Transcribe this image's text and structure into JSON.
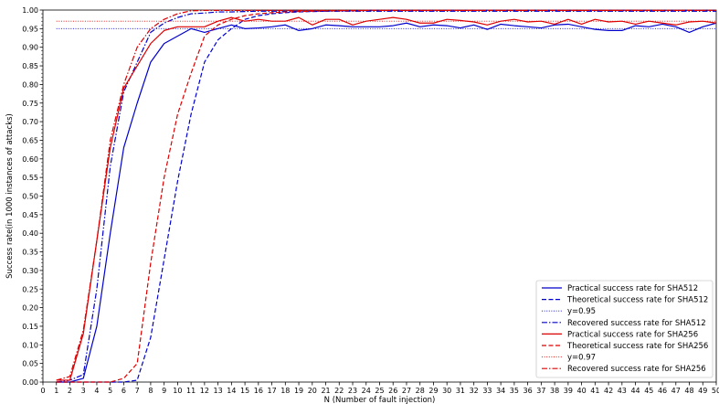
{
  "chart_data": {
    "type": "line",
    "xlabel": "N (Number of fault injection)",
    "ylabel": "Success rate(in 1000 instances of attacks)",
    "xlim": [
      0,
      50
    ],
    "ylim": [
      0,
      1.0
    ],
    "x_ticks": [
      0,
      1,
      2,
      3,
      4,
      5,
      6,
      7,
      8,
      9,
      10,
      11,
      12,
      13,
      14,
      15,
      16,
      17,
      18,
      19,
      20,
      21,
      22,
      23,
      24,
      25,
      26,
      27,
      28,
      29,
      30,
      31,
      32,
      33,
      34,
      35,
      36,
      37,
      38,
      39,
      40,
      41,
      42,
      43,
      44,
      45,
      46,
      47,
      48,
      49,
      50
    ],
    "y_ticks": [
      0.0,
      0.05,
      0.1,
      0.15,
      0.2,
      0.25,
      0.3,
      0.35,
      0.4,
      0.45,
      0.5,
      0.55,
      0.6,
      0.65,
      0.7,
      0.75,
      0.8,
      0.85,
      0.9,
      0.95,
      1.0
    ],
    "grid": false,
    "legend_position": "bottom-right",
    "series": [
      {
        "name": "Practical success rate for SHA512",
        "color": "#0000cc",
        "style": "solid",
        "x": [
          1,
          2,
          3,
          4,
          5,
          6,
          7,
          8,
          9,
          10,
          11,
          12,
          13,
          14,
          15,
          16,
          17,
          18,
          19,
          20,
          21,
          22,
          23,
          24,
          25,
          26,
          27,
          28,
          29,
          30,
          31,
          32,
          33,
          34,
          35,
          36,
          37,
          38,
          39,
          40,
          41,
          42,
          43,
          44,
          45,
          46,
          47,
          48,
          49,
          50
        ],
        "y": [
          0,
          0,
          0.01,
          0.15,
          0.4,
          0.63,
          0.75,
          0.86,
          0.91,
          0.93,
          0.95,
          0.94,
          0.95,
          0.96,
          0.95,
          0.952,
          0.955,
          0.96,
          0.945,
          0.95,
          0.96,
          0.958,
          0.955,
          0.955,
          0.955,
          0.958,
          0.965,
          0.955,
          0.96,
          0.958,
          0.952,
          0.96,
          0.948,
          0.962,
          0.958,
          0.955,
          0.952,
          0.96,
          0.962,
          0.955,
          0.948,
          0.945,
          0.945,
          0.958,
          0.955,
          0.962,
          0.955,
          0.94,
          0.955,
          0.965
        ]
      },
      {
        "name": "Theoretical success rate for SHA512",
        "color": "#0000cc",
        "style": "dashed",
        "x": [
          1,
          2,
          3,
          4,
          5,
          6,
          7,
          8,
          9,
          10,
          11,
          12,
          13,
          14,
          15,
          16,
          17,
          18,
          19,
          20,
          21,
          22,
          23,
          24,
          25,
          26,
          27,
          28,
          29,
          30,
          31,
          32,
          33,
          34,
          35,
          36,
          37,
          38,
          39,
          40,
          41,
          42,
          43,
          44,
          45,
          46,
          47,
          48,
          49,
          50
        ],
        "y": [
          0,
          0,
          0,
          0,
          0,
          0,
          0.005,
          0.12,
          0.33,
          0.54,
          0.72,
          0.86,
          0.92,
          0.95,
          0.975,
          0.985,
          0.99,
          0.993,
          0.995,
          0.996,
          0.997,
          0.998,
          0.998,
          0.999,
          0.999,
          0.999,
          0.999,
          0.999,
          0.999,
          0.999,
          0.999,
          0.999,
          0.999,
          0.999,
          0.999,
          0.999,
          0.999,
          0.999,
          0.999,
          0.999,
          0.999,
          0.999,
          0.999,
          0.999,
          0.999,
          0.999,
          0.999,
          0.999,
          0.999,
          0.999
        ]
      },
      {
        "name": "y=0.95",
        "color": "#0000cc",
        "style": "dotted",
        "x": [
          1,
          50
        ],
        "y": [
          0.95,
          0.95
        ]
      },
      {
        "name": "Recovered success rate for SHA512",
        "color": "#0000cc",
        "style": "dashdot",
        "x": [
          1,
          2,
          3,
          4,
          5,
          6,
          7,
          8,
          9,
          10,
          11,
          12,
          13,
          14,
          15,
          16,
          17,
          18,
          19,
          20,
          21,
          22,
          23,
          24,
          25,
          26,
          27,
          28,
          29,
          30,
          31,
          32,
          33,
          34,
          35,
          36,
          37,
          38,
          39,
          40,
          41,
          42,
          43,
          44,
          45,
          46,
          47,
          48,
          49,
          50
        ],
        "y": [
          0,
          0.005,
          0.02,
          0.25,
          0.58,
          0.78,
          0.86,
          0.94,
          0.965,
          0.98,
          0.99,
          0.992,
          0.995,
          0.995,
          0.996,
          0.997,
          0.997,
          0.997,
          0.997,
          0.997,
          0.997,
          0.997,
          0.997,
          0.997,
          0.997,
          0.997,
          0.997,
          0.997,
          0.997,
          0.997,
          0.997,
          0.997,
          0.997,
          0.997,
          0.997,
          0.997,
          0.997,
          0.997,
          0.997,
          0.997,
          0.997,
          0.997,
          0.997,
          0.997,
          0.997,
          0.997,
          0.997,
          0.997,
          0.997,
          0.997
        ]
      },
      {
        "name": "Practical success rate for SHA256",
        "color": "#dd0000",
        "style": "solid",
        "x": [
          1,
          2,
          3,
          4,
          5,
          6,
          7,
          8,
          9,
          10,
          11,
          12,
          13,
          14,
          15,
          16,
          17,
          18,
          19,
          20,
          21,
          22,
          23,
          24,
          25,
          26,
          27,
          28,
          29,
          30,
          31,
          32,
          33,
          34,
          35,
          36,
          37,
          38,
          39,
          40,
          41,
          42,
          43,
          44,
          45,
          46,
          47,
          48,
          49,
          50
        ],
        "y": [
          0.005,
          0.005,
          0.13,
          0.38,
          0.63,
          0.79,
          0.85,
          0.91,
          0.945,
          0.955,
          0.955,
          0.955,
          0.97,
          0.98,
          0.97,
          0.975,
          0.97,
          0.97,
          0.98,
          0.96,
          0.975,
          0.975,
          0.96,
          0.97,
          0.975,
          0.98,
          0.975,
          0.965,
          0.965,
          0.975,
          0.972,
          0.968,
          0.96,
          0.97,
          0.975,
          0.968,
          0.97,
          0.962,
          0.975,
          0.962,
          0.975,
          0.968,
          0.97,
          0.962,
          0.97,
          0.965,
          0.96,
          0.968,
          0.97,
          0.965
        ]
      },
      {
        "name": "Theoretical success rate for SHA256",
        "color": "#dd0000",
        "style": "dashed",
        "x": [
          1,
          2,
          3,
          4,
          5,
          6,
          7,
          8,
          9,
          10,
          11,
          12,
          13,
          14,
          15,
          16,
          17,
          18,
          19,
          20,
          21,
          22,
          23,
          24,
          25,
          26,
          27,
          28,
          29,
          30,
          31,
          32,
          33,
          34,
          35,
          36,
          37,
          38,
          39,
          40,
          41,
          42,
          43,
          44,
          45,
          46,
          47,
          48,
          49,
          50
        ],
        "y": [
          0,
          0,
          0,
          0,
          0,
          0.01,
          0.05,
          0.32,
          0.55,
          0.72,
          0.83,
          0.93,
          0.96,
          0.975,
          0.985,
          0.99,
          0.993,
          0.995,
          0.996,
          0.997,
          0.998,
          0.998,
          0.998,
          0.999,
          0.999,
          0.999,
          0.999,
          0.999,
          0.999,
          0.999,
          0.999,
          0.999,
          0.999,
          0.999,
          0.999,
          0.999,
          0.999,
          0.999,
          0.999,
          0.999,
          0.999,
          0.999,
          0.999,
          0.999,
          0.999,
          0.999,
          0.999,
          0.999,
          0.999,
          0.999
        ]
      },
      {
        "name": "y=0.97",
        "color": "#dd0000",
        "style": "dotted",
        "x": [
          1,
          50
        ],
        "y": [
          0.97,
          0.97
        ]
      },
      {
        "name": "Recovered success rate for SHA256",
        "color": "#dd0000",
        "style": "dashdot",
        "x": [
          1,
          2,
          3,
          4,
          5,
          6,
          7,
          8,
          9,
          10,
          11,
          12,
          13,
          14,
          15,
          16,
          17,
          18,
          19,
          20,
          21,
          22,
          23,
          24,
          25,
          26,
          27,
          28,
          29,
          30,
          31,
          32,
          33,
          34,
          35,
          36,
          37,
          38,
          39,
          40,
          41,
          42,
          43,
          44,
          45,
          46,
          47,
          48,
          49,
          50
        ],
        "y": [
          0.005,
          0.015,
          0.14,
          0.38,
          0.65,
          0.8,
          0.9,
          0.95,
          0.975,
          0.99,
          0.998,
          0.999,
          0.999,
          0.999,
          0.999,
          0.999,
          0.999,
          0.999,
          0.999,
          0.999,
          0.999,
          0.999,
          0.999,
          0.999,
          0.999,
          0.999,
          0.999,
          0.999,
          0.999,
          0.999,
          0.999,
          0.999,
          0.999,
          0.999,
          0.999,
          0.999,
          0.999,
          0.999,
          0.999,
          0.999,
          0.999,
          0.999,
          0.999,
          0.999,
          0.999,
          0.999,
          0.999,
          0.999,
          0.999,
          0.999
        ]
      }
    ]
  }
}
